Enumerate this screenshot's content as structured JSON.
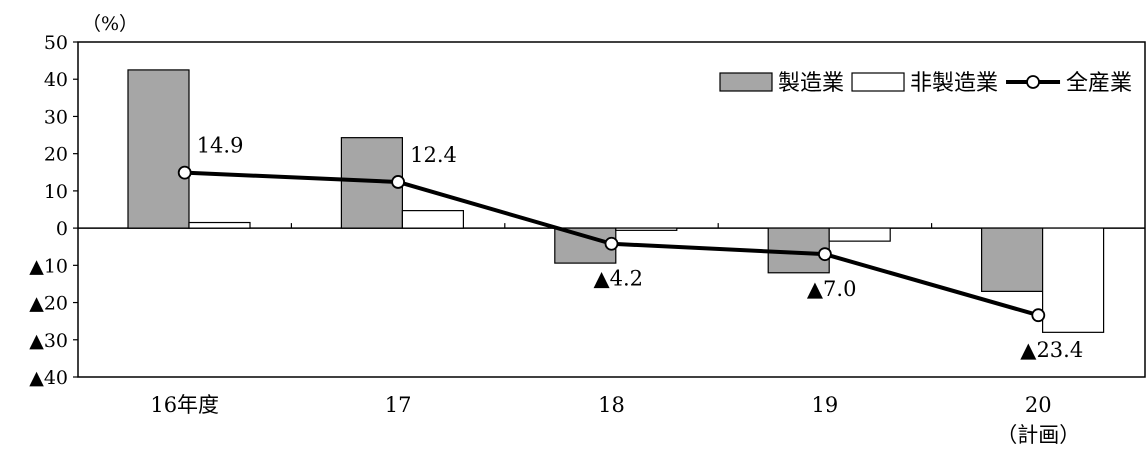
{
  "chart_data": {
    "type": "bar",
    "unit_label": "（%）",
    "categories": [
      "16年度",
      "17",
      "18",
      "19",
      "20"
    ],
    "category_sublabels": [
      "",
      "",
      "",
      "",
      "（計画）"
    ],
    "ylim": [
      -40,
      50
    ],
    "yticks": [
      50,
      40,
      30,
      20,
      10,
      0,
      -10,
      -20,
      -30,
      -40
    ],
    "ytick_labels": [
      "50",
      "40",
      "30",
      "20",
      "10",
      "0",
      "▲10",
      "▲20",
      "▲30",
      "▲40"
    ],
    "series": [
      {
        "name": "製造業",
        "type": "bar",
        "color": "#a6a6a6",
        "values": [
          42.5,
          24.3,
          -9.4,
          -12.0,
          -17.0
        ]
      },
      {
        "name": "非製造業",
        "type": "bar",
        "color": "#ffffff",
        "values": [
          1.5,
          4.7,
          -0.6,
          -3.5,
          -28.0
        ]
      },
      {
        "name": "全産業",
        "type": "line",
        "color": "#000000",
        "values": [
          14.9,
          12.4,
          -4.2,
          -7.0,
          -23.4
        ],
        "labels": [
          "14.9",
          "12.4",
          "▲4.2",
          "▲7.0",
          "▲23.4"
        ]
      }
    ],
    "grid": false,
    "legend_position": "top-right"
  }
}
